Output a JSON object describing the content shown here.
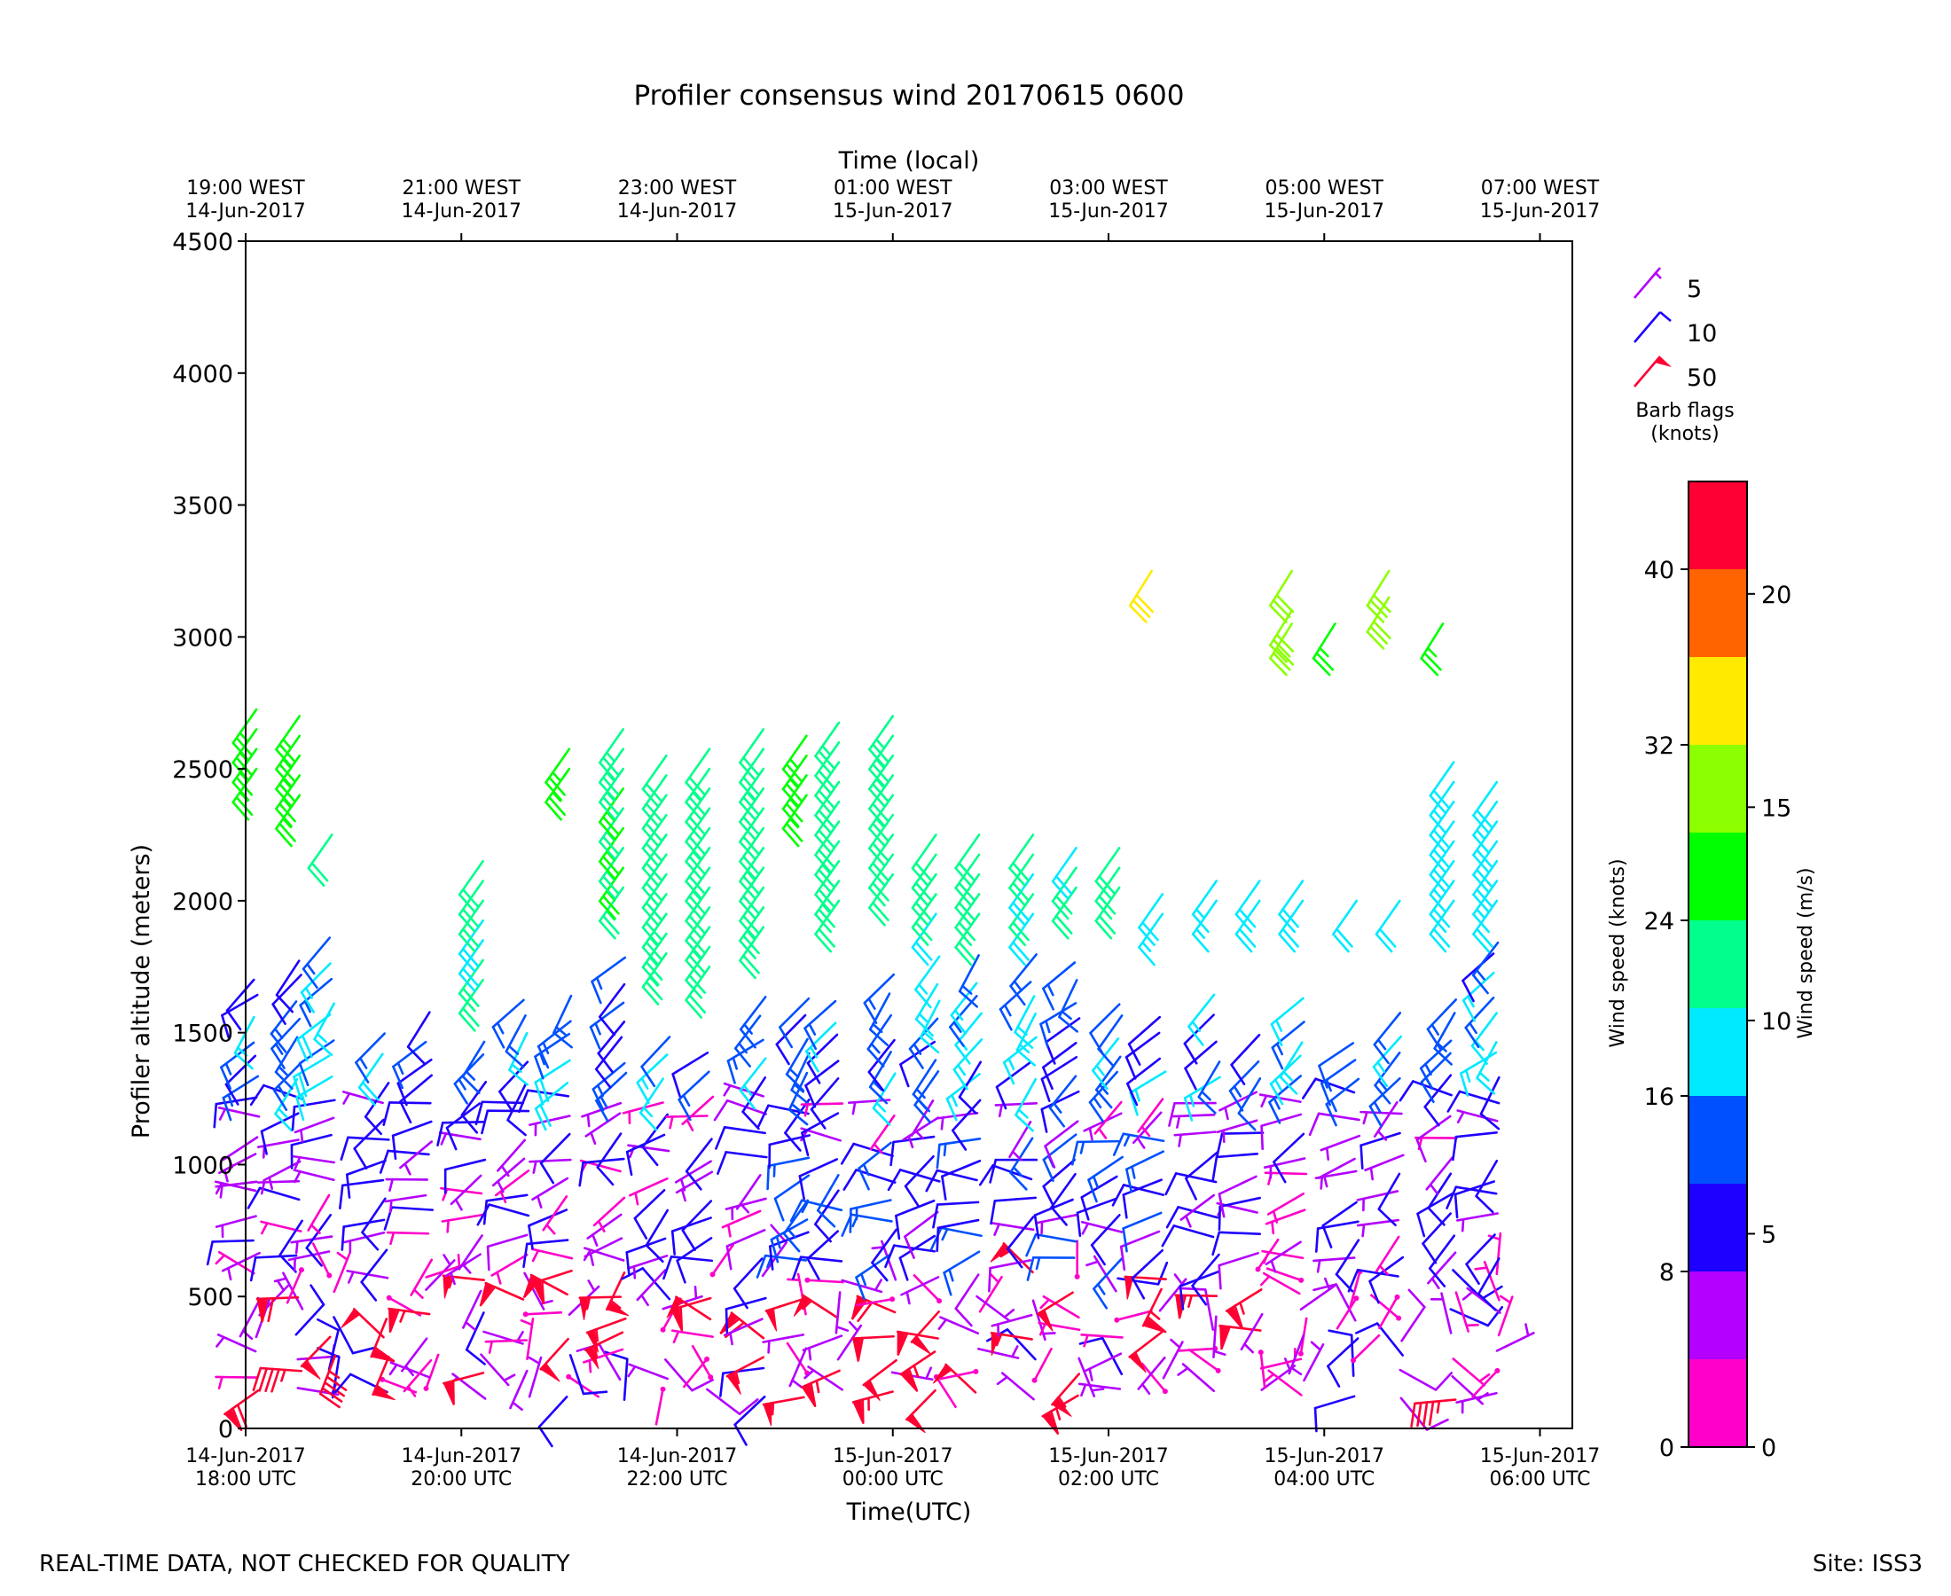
{
  "chart_data": {
    "type": "wind-barb",
    "title": "Profiler consensus wind 20170615 0600",
    "xlabel": "Time(UTC)",
    "xlabel_top": "Time (local)",
    "ylabel": "Profiler altitude (meters)",
    "ylim": [
      0,
      4500
    ],
    "yticks": [
      0,
      500,
      1000,
      1500,
      2000,
      2500,
      3000,
      3500,
      4000,
      4500
    ],
    "xlim_hours": [
      0,
      12.3
    ],
    "xticks_bottom": [
      {
        "h": 0,
        "l1": "14-Jun-2017",
        "l2": "18:00 UTC"
      },
      {
        "h": 2,
        "l1": "14-Jun-2017",
        "l2": "20:00 UTC"
      },
      {
        "h": 4,
        "l1": "14-Jun-2017",
        "l2": "22:00 UTC"
      },
      {
        "h": 6,
        "l1": "15-Jun-2017",
        "l2": "00:00 UTC"
      },
      {
        "h": 8,
        "l1": "15-Jun-2017",
        "l2": "02:00 UTC"
      },
      {
        "h": 10,
        "l1": "15-Jun-2017",
        "l2": "04:00 UTC"
      },
      {
        "h": 12,
        "l1": "15-Jun-2017",
        "l2": "06:00 UTC"
      }
    ],
    "xticks_top": [
      {
        "h": 0,
        "l1": "19:00 WEST",
        "l2": "14-Jun-2017"
      },
      {
        "h": 2,
        "l1": "21:00 WEST",
        "l2": "14-Jun-2017"
      },
      {
        "h": 4,
        "l1": "23:00 WEST",
        "l2": "14-Jun-2017"
      },
      {
        "h": 6,
        "l1": "01:00 WEST",
        "l2": "15-Jun-2017"
      },
      {
        "h": 8,
        "l1": "03:00 WEST",
        "l2": "15-Jun-2017"
      },
      {
        "h": 10,
        "l1": "05:00 WEST",
        "l2": "15-Jun-2017"
      },
      {
        "h": 12,
        "l1": "07:00 WEST",
        "l2": "15-Jun-2017"
      }
    ],
    "barb_legend": {
      "items": [
        {
          "value": "5",
          "color": "#b400ff",
          "kind": "half"
        },
        {
          "value": "10",
          "color": "#1e00ff",
          "kind": "full"
        },
        {
          "value": "50",
          "color": "#ff0032",
          "kind": "flag"
        }
      ],
      "title_line1": "Barb flags",
      "title_line2": "(knots)"
    },
    "colorbar": {
      "bounds_knots": [
        0,
        4,
        8,
        12,
        16,
        20,
        24,
        28,
        32,
        36,
        40,
        44
      ],
      "colors": [
        "#ff00c8",
        "#b400ff",
        "#1e00ff",
        "#0050ff",
        "#00eaff",
        "#00ff8c",
        "#00ff00",
        "#8cff00",
        "#ffea00",
        "#ff6400",
        "#ff0032"
      ],
      "ticks_knots": [
        "0",
        "8",
        "16",
        "24",
        "32",
        "40"
      ],
      "ticks_ms": [
        "0",
        "5",
        "10",
        "15",
        "20"
      ],
      "label_knots": "Wind speed (knots)",
      "label_ms": "Wind speed (m/s)"
    },
    "barbs": {
      "times_hours": [
        0.1,
        0.5,
        0.8,
        1.3,
        1.7,
        2.2,
        2.6,
        3.0,
        3.5,
        3.9,
        4.3,
        4.8,
        5.2,
        5.5,
        6.0,
        6.4,
        6.8,
        7.3,
        7.7,
        8.1,
        8.5,
        9.0,
        9.4,
        9.8,
        10.3,
        10.7,
        11.2,
        11.6
      ],
      "profiles": [
        {
          "t": 0.1,
          "top": 1750,
          "hi": [
            2750,
            2500
          ],
          "hiSpd": 26
        },
        {
          "t": 0.5,
          "top": 1850,
          "hi": [
            2750,
            2400
          ],
          "hiSpd": 26
        },
        {
          "t": 0.8,
          "top": 1900,
          "hi": [
            2250,
            2250
          ],
          "hiSpd": 22
        },
        {
          "t": 1.3,
          "top": 1550,
          "hi": [],
          "hiSpd": 0
        },
        {
          "t": 1.7,
          "top": 1600,
          "hi": [],
          "hiSpd": 0
        },
        {
          "t": 2.2,
          "top": 1500,
          "hi": [
            2200,
            1700
          ],
          "hiSpd": 20
        },
        {
          "t": 2.6,
          "top": 1650,
          "hi": [],
          "hiSpd": 0
        },
        {
          "t": 3.0,
          "top": 1650,
          "hi": [
            2600,
            2500
          ],
          "hiSpd": 26
        },
        {
          "t": 3.5,
          "top": 1800,
          "hi": [
            2650,
            2050
          ],
          "hiSpd": 24
        },
        {
          "t": 3.9,
          "top": 1550,
          "hi": [
            2600,
            1800
          ],
          "hiSpd": 22
        },
        {
          "t": 4.3,
          "top": 1450,
          "hi": [
            2600,
            1750
          ],
          "hiSpd": 22
        },
        {
          "t": 4.8,
          "top": 1650,
          "hi": [
            2700,
            1900
          ],
          "hiSpd": 22
        },
        {
          "t": 5.2,
          "top": 1650,
          "hi": [
            2650,
            2400
          ],
          "hiSpd": 26
        },
        {
          "t": 5.5,
          "top": 1700,
          "hi": [
            2700,
            2000
          ],
          "hiSpd": 22
        },
        {
          "t": 6.0,
          "top": 1750,
          "hi": [
            2750,
            2100
          ],
          "hiSpd": 22
        },
        {
          "t": 6.4,
          "top": 1800,
          "hi": [
            2250,
            1950
          ],
          "hiSpd": 20
        },
        {
          "t": 6.8,
          "top": 1800,
          "hi": [
            2250,
            1950
          ],
          "hiSpd": 20
        },
        {
          "t": 7.3,
          "top": 1800,
          "hi": [
            2250,
            1950
          ],
          "hiSpd": 20
        },
        {
          "t": 7.7,
          "top": 1800,
          "hi": [
            2200,
            2050
          ],
          "hiSpd": 20
        },
        {
          "t": 8.1,
          "top": 1700,
          "hi": [
            2200,
            2050
          ],
          "hiSpd": 20
        },
        {
          "t": 8.5,
          "top": 1600,
          "hi": [
            2050,
            1950
          ],
          "hiSpd": 18
        },
        {
          "t": 9.0,
          "top": 1650,
          "hi": [
            2100,
            2000
          ],
          "hiSpd": 18
        },
        {
          "t": 9.4,
          "top": 1500,
          "hi": [
            2100,
            2000
          ],
          "hiSpd": 18
        },
        {
          "t": 9.8,
          "top": 1700,
          "hi": [
            2100,
            2000
          ],
          "hiSpd": 18
        },
        {
          "t": 10.3,
          "top": 1550,
          "hi": [
            2000,
            2000
          ],
          "hiSpd": 18
        },
        {
          "t": 10.7,
          "top": 1600,
          "hi": [
            2000,
            2000
          ],
          "hiSpd": 18
        },
        {
          "t": 11.2,
          "top": 1650,
          "hi": [
            2550,
            2000
          ],
          "hiSpd": 18
        },
        {
          "t": 11.6,
          "top": 1900,
          "hi": [
            2450,
            2000
          ],
          "hiSpd": 18
        }
      ],
      "upper_barbs": [
        {
          "t": 8.4,
          "alt": 3250,
          "spd": 32
        },
        {
          "t": 9.7,
          "alt": 3250,
          "spd": 28
        },
        {
          "t": 9.7,
          "alt": 3100,
          "spd": 28
        },
        {
          "t": 9.7,
          "alt": 3050,
          "spd": 28
        },
        {
          "t": 10.1,
          "alt": 3050,
          "spd": 26
        },
        {
          "t": 10.6,
          "alt": 3250,
          "spd": 28
        },
        {
          "t": 10.6,
          "alt": 3150,
          "spd": 28
        },
        {
          "t": 11.1,
          "alt": 3050,
          "spd": 24
        }
      ]
    }
  },
  "footer": {
    "left": "REAL-TIME DATA, NOT CHECKED FOR QUALITY",
    "right": "Site: ISS3"
  }
}
